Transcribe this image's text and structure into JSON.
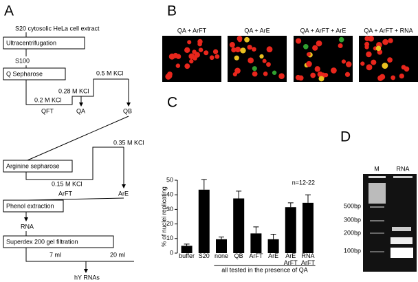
{
  "panels": {
    "a": {
      "label": "A",
      "texts": [
        "S20 cytosolic HeLa cell extract",
        "Ultracentrifugation",
        "S100",
        "Q Sepharose",
        "0.2 M KCl",
        "0.28 M KCl",
        "0.5 M KCl",
        "QFT",
        "QA",
        "QB",
        "Arginine sepharose",
        "0.35 M KCl",
        "0.15 M KCl",
        "ArFT",
        "ArE",
        "Phenol extraction",
        "RNA",
        "Superdex 200 gel filtration",
        "7 ml",
        "20 ml",
        "hY RNAs"
      ]
    },
    "b": {
      "label": "B",
      "conditions": [
        "QA + ArFT",
        "QA + ArE",
        "QA + ArFT + ArE",
        "QA + ArFT + RNA"
      ]
    },
    "c": {
      "label": "C"
    },
    "d": {
      "label": "D",
      "lanes": [
        "M",
        "RNA"
      ],
      "markers": [
        "500bp",
        "300bp",
        "200bp",
        "100bp"
      ]
    }
  },
  "chart_data": {
    "type": "bar",
    "ylabel": "% of nuclei replicating",
    "annotation": "n=12-22",
    "group_label": "all tested in the presence of QA",
    "categories": [
      "buffer",
      "S20",
      "none",
      "QB",
      "ArFT",
      "ArE",
      "ArE\nArFT",
      "RNA\nArFT"
    ],
    "values": [
      5,
      43.5,
      9.5,
      37.5,
      13.5,
      9.5,
      31.5,
      34.5
    ],
    "errors": [
      1.2,
      7,
      1.5,
      5,
      4.5,
      3.5,
      3,
      5.5
    ],
    "color": "#000000",
    "ylim": [
      0,
      50
    ],
    "yticks": [
      0,
      10,
      20,
      30,
      40,
      50
    ]
  }
}
